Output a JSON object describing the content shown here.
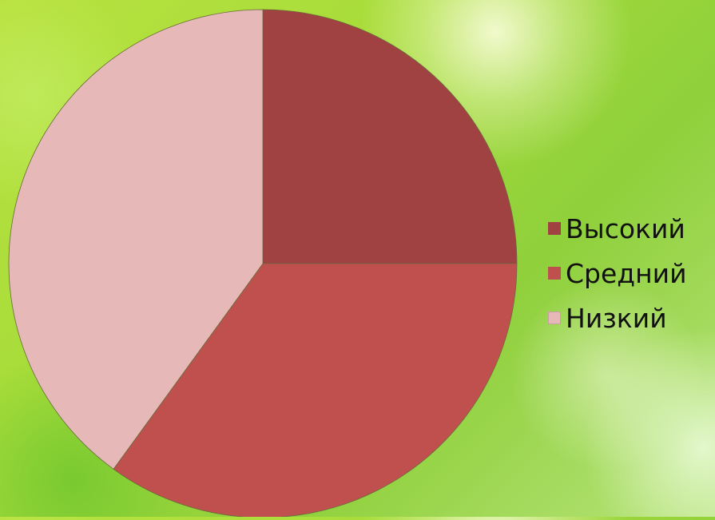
{
  "chart_data": {
    "type": "pie",
    "title": "",
    "categories": [
      "Высокий",
      "Средний",
      "Низкий"
    ],
    "values": [
      25,
      35,
      40
    ],
    "colors": [
      "#a04242",
      "#c0504e",
      "#e6b8b7"
    ],
    "legend_position": "right"
  }
}
